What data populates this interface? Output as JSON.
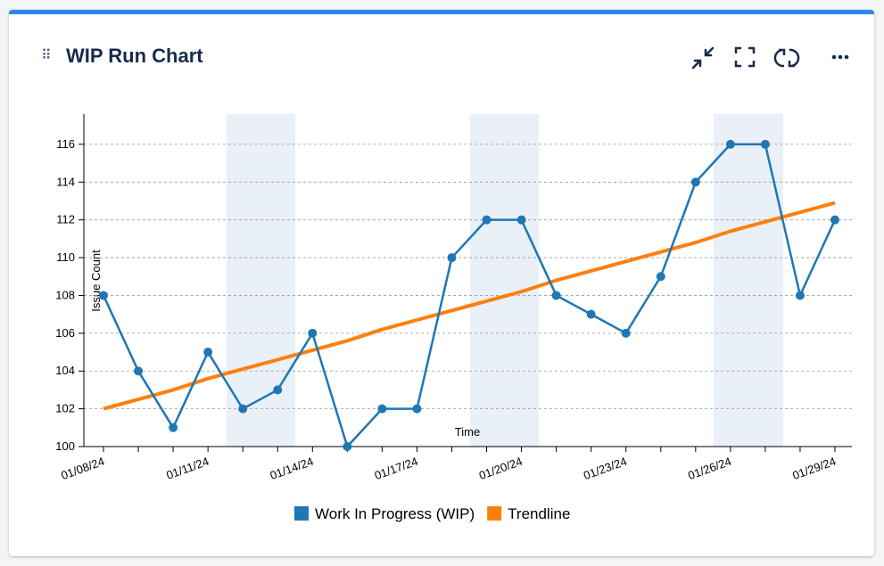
{
  "header": {
    "title": "WIP Run Chart"
  },
  "chart_data": {
    "type": "line",
    "x_label": "Time",
    "y_label": "Issue Count",
    "categories": [
      "01/08/24",
      null,
      null,
      "01/11/24",
      null,
      null,
      "01/14/24",
      null,
      null,
      "01/17/24",
      null,
      null,
      "01/20/24",
      null,
      null,
      "01/23/24",
      null,
      null,
      "01/26/24",
      null,
      null,
      "01/29/24"
    ],
    "series": [
      {
        "name": "Work In Progress (WIP)",
        "color": "#1f77b4",
        "markers": true,
        "values": [
          108,
          104,
          101,
          105,
          102,
          103,
          106,
          100,
          102,
          102,
          110,
          112,
          112,
          108,
          107,
          106,
          109,
          114,
          116,
          116,
          108,
          112
        ]
      },
      {
        "name": "Trendline",
        "color": "#ff7f0e",
        "markers": false,
        "values": [
          102.0,
          102.5,
          103.0,
          103.6,
          104.1,
          104.6,
          105.1,
          105.6,
          106.2,
          106.7,
          107.2,
          107.7,
          108.2,
          108.8,
          109.3,
          109.8,
          110.3,
          110.8,
          111.4,
          111.9,
          112.4,
          112.9
        ]
      }
    ],
    "ylim": [
      100,
      117.6
    ],
    "yticks": [
      100,
      102,
      104,
      106,
      108,
      110,
      112,
      114,
      116
    ],
    "grid": true,
    "legend": "bottom"
  }
}
